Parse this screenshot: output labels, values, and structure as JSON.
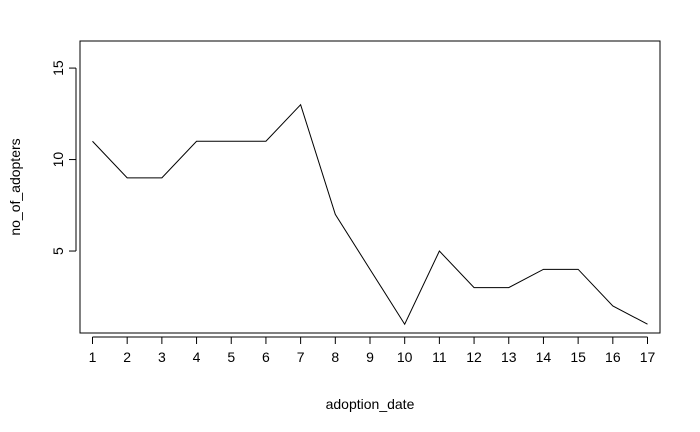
{
  "chart_data": {
    "type": "line",
    "title": "",
    "xlabel": "adoption_date",
    "ylabel": "no_of_adopters",
    "x": [
      1,
      2,
      3,
      4,
      5,
      6,
      7,
      8,
      9,
      10,
      11,
      12,
      13,
      14,
      15,
      16,
      17
    ],
    "series": [
      {
        "values": [
          11,
          9,
          9,
          11,
          11,
          11,
          13,
          7,
          4,
          1,
          5,
          3,
          3,
          4,
          4,
          2,
          1
        ]
      }
    ],
    "xlim": [
      0.64,
      17.36
    ],
    "ylim": [
      0.52,
      16.48
    ],
    "xticks": [
      1,
      2,
      3,
      4,
      5,
      6,
      7,
      8,
      9,
      10,
      11,
      12,
      13,
      14,
      15,
      16,
      17
    ],
    "yticks": [
      5,
      10,
      15
    ],
    "grid": false,
    "legend": "none",
    "line_color": "#000000"
  }
}
